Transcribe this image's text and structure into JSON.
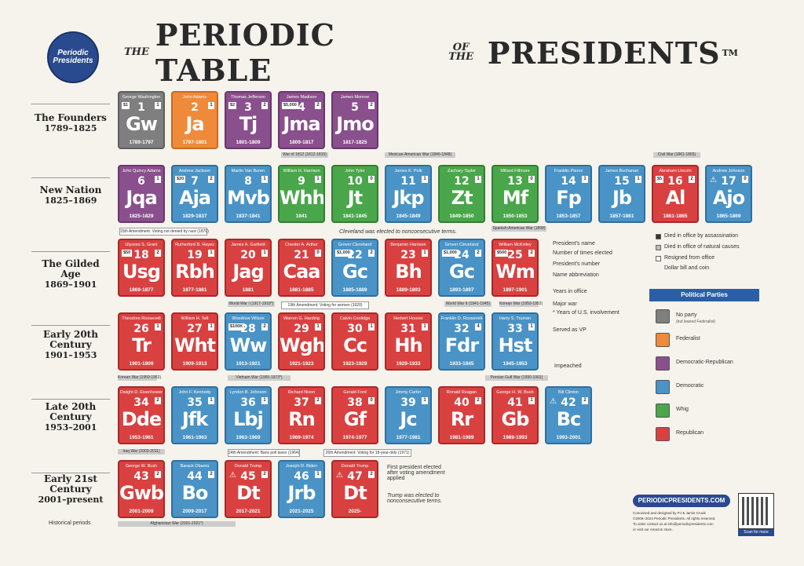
{
  "logo": {
    "text": "Periodic Presidents"
  },
  "title": {
    "the1": "THE",
    "part1": "PERIODIC TABLE",
    "of_the": "OF THE",
    "part2": "PRESIDENTS",
    "tm": "TM"
  },
  "eras": [
    {
      "name": "The Founders",
      "years": "1789–1825"
    },
    {
      "name": "New Nation",
      "years": "1825–1869"
    },
    {
      "name": "The Gilded Age",
      "years": "1869–1901"
    },
    {
      "name": "Early 20th Century",
      "years": "1901–1953"
    },
    {
      "name": "Late 20th Century",
      "years": "1953–2001"
    },
    {
      "name": "Early 21st Century",
      "years": "2001–present"
    }
  ],
  "historical_periods_label": "Historical periods",
  "presidents": [
    {
      "name": "George Washington",
      "num": "1",
      "abbr": "Gw",
      "years": "1789-1797",
      "party": "none",
      "bill": "$1",
      "count": "1"
    },
    {
      "name": "John Adams",
      "num": "2",
      "abbr": "Ja",
      "years": "1797-1801",
      "party": "fed",
      "count": "1"
    },
    {
      "name": "Thomas Jefferson",
      "num": "3",
      "abbr": "Tj",
      "years": "1801-1809",
      "party": "dr",
      "bill": "$2",
      "count": "2"
    },
    {
      "name": "James Madison",
      "num": "4",
      "abbr": "Jma",
      "years": "1809-1817",
      "party": "dr",
      "bill": "$5,000",
      "count": "2"
    },
    {
      "name": "James Monroe",
      "num": "5",
      "abbr": "Jmo",
      "years": "1817-1825",
      "party": "dr",
      "count": "2"
    },
    {
      "name": "John Quincy Adams",
      "num": "6",
      "abbr": "Jqa",
      "years": "1825-1829",
      "party": "dr",
      "count": "1"
    },
    {
      "name": "Andrew Jackson",
      "num": "7",
      "abbr": "Aja",
      "years": "1829-1837",
      "party": "dem",
      "bill": "$20",
      "count": "2"
    },
    {
      "name": "Martin Van Buren",
      "num": "8",
      "abbr": "Mvb",
      "years": "1837-1841",
      "party": "dem",
      "count": "1"
    },
    {
      "name": "William H. Harrison",
      "num": "9",
      "abbr": "Whh",
      "years": "1841",
      "party": "whig",
      "count": "1"
    },
    {
      "name": "John Tyler",
      "num": "10",
      "abbr": "Jt",
      "years": "1841-1845",
      "party": "whig",
      "count": "0"
    },
    {
      "name": "James K. Polk",
      "num": "11",
      "abbr": "Jkp",
      "years": "1845-1849",
      "party": "dem",
      "count": "1"
    },
    {
      "name": "Zachary Taylor",
      "num": "12",
      "abbr": "Zt",
      "years": "1849-1850",
      "party": "whig",
      "count": "1"
    },
    {
      "name": "Millard Fillmore",
      "num": "13",
      "abbr": "Mf",
      "years": "1850-1853",
      "party": "whig",
      "count": "0"
    },
    {
      "name": "Franklin Pierce",
      "num": "14",
      "abbr": "Fp",
      "years": "1853-1857",
      "party": "dem",
      "count": "1"
    },
    {
      "name": "James Buchanan",
      "num": "15",
      "abbr": "Jb",
      "years": "1857-1861",
      "party": "dem",
      "count": "1"
    },
    {
      "name": "Abraham Lincoln",
      "num": "16",
      "abbr": "Al",
      "years": "1861-1865",
      "party": "rep",
      "bill": "$5",
      "count": "2"
    },
    {
      "name": "Andrew Johnson",
      "num": "17",
      "abbr": "Ajo",
      "years": "1865-1869",
      "party": "dem",
      "count": "0",
      "warn": "⚠"
    },
    {
      "name": "Ulysses S. Grant",
      "num": "18",
      "abbr": "Usg",
      "years": "1869-1877",
      "party": "rep",
      "bill": "$50",
      "count": "2"
    },
    {
      "name": "Rutherford B. Hayes",
      "num": "19",
      "abbr": "Rbh",
      "years": "1877-1881",
      "party": "rep",
      "count": "1"
    },
    {
      "name": "James A. Garfield",
      "num": "20",
      "abbr": "Jag",
      "years": "1881",
      "party": "rep",
      "count": "1"
    },
    {
      "name": "Chester A. Arthur",
      "num": "21",
      "abbr": "Caa",
      "years": "1881-1885",
      "party": "rep",
      "count": "0"
    },
    {
      "name": "Grover Cleveland",
      "num": "22",
      "abbr": "Gc",
      "years": "1885-1889",
      "party": "dem",
      "bill": "$1,000",
      "count": "2"
    },
    {
      "name": "Benjamin Harrison",
      "num": "23",
      "abbr": "Bh",
      "years": "1889-1893",
      "party": "rep",
      "count": "1"
    },
    {
      "name": "Grover Cleveland",
      "num": "24",
      "abbr": "Gc",
      "years": "1893-1897",
      "party": "dem",
      "bill": "$1,000",
      "count": "2"
    },
    {
      "name": "William McKinley",
      "num": "25",
      "abbr": "Wm",
      "years": "1897-1901",
      "party": "rep",
      "bill": "$500",
      "count": "2"
    },
    {
      "name": "Theodore Roosevelt",
      "num": "26",
      "abbr": "Tr",
      "years": "1901-1909",
      "party": "rep",
      "count": "1"
    },
    {
      "name": "William H. Taft",
      "num": "27",
      "abbr": "Wht",
      "years": "1909-1913",
      "party": "rep",
      "count": "1"
    },
    {
      "name": "Woodrow Wilson",
      "num": "28",
      "abbr": "Ww",
      "years": "1913-1921",
      "party": "dem",
      "bill": "$100K",
      "count": "2"
    },
    {
      "name": "Warren G. Harding",
      "num": "29",
      "abbr": "Wgh",
      "years": "1921-1923",
      "party": "rep",
      "count": "1"
    },
    {
      "name": "Calvin Coolidge",
      "num": "30",
      "abbr": "Cc",
      "years": "1923-1929",
      "party": "rep",
      "count": "1"
    },
    {
      "name": "Herbert Hoover",
      "num": "31",
      "abbr": "Hh",
      "years": "1929-1933",
      "party": "rep",
      "count": "1"
    },
    {
      "name": "Franklin D. Roosevelt",
      "num": "32",
      "abbr": "Fdr",
      "years": "1933-1945",
      "party": "dem",
      "count": "4"
    },
    {
      "name": "Harry S. Truman",
      "num": "33",
      "abbr": "Hst",
      "years": "1945-1953",
      "party": "dem",
      "count": "1"
    },
    {
      "name": "Dwight D. Eisenhower",
      "num": "34",
      "abbr": "Dde",
      "years": "1953-1961",
      "party": "rep",
      "count": "2"
    },
    {
      "name": "John F. Kennedy",
      "num": "35",
      "abbr": "Jfk",
      "years": "1961-1963",
      "party": "dem",
      "count": "1"
    },
    {
      "name": "Lyndon B. Johnson",
      "num": "36",
      "abbr": "Lbj",
      "years": "1963-1969",
      "party": "dem",
      "count": "1"
    },
    {
      "name": "Richard Nixon",
      "num": "37",
      "abbr": "Rn",
      "years": "1969-1974",
      "party": "rep",
      "count": "2"
    },
    {
      "name": "Gerald Ford",
      "num": "38",
      "abbr": "Gf",
      "years": "1974-1977",
      "party": "rep",
      "count": "0"
    },
    {
      "name": "Jimmy Carter",
      "num": "39",
      "abbr": "Jc",
      "years": "1977-1981",
      "party": "dem",
      "count": "1"
    },
    {
      "name": "Ronald Reagan",
      "num": "40",
      "abbr": "Rr",
      "years": "1981-1989",
      "party": "rep",
      "count": "2"
    },
    {
      "name": "George H. W. Bush",
      "num": "41",
      "abbr": "Gb",
      "years": "1989-1993",
      "party": "rep",
      "count": "1"
    },
    {
      "name": "Bill Clinton",
      "num": "42",
      "abbr": "Bc",
      "years": "1993-2001",
      "party": "dem",
      "count": "2",
      "warn": "⚠"
    },
    {
      "name": "George W. Bush",
      "num": "43",
      "abbr": "Gwb",
      "years": "2001-2009",
      "party": "rep",
      "count": "2"
    },
    {
      "name": "Barack Obama",
      "num": "44",
      "abbr": "Bo",
      "years": "2009-2017",
      "party": "dem",
      "count": "2"
    },
    {
      "name": "Donald Trump",
      "num": "45",
      "abbr": "Dt",
      "years": "2017-2021",
      "party": "rep",
      "count": "2",
      "warn": "⚠"
    },
    {
      "name": "Joseph R. Biden",
      "num": "46",
      "abbr": "Jrb",
      "years": "2021-2025",
      "party": "dem",
      "count": "1"
    },
    {
      "name": "Donald Trump",
      "num": "47",
      "abbr": "Dt",
      "years": "2025-",
      "party": "rep",
      "count": "2",
      "warn": "⚠"
    }
  ],
  "wars": [
    "War of 1812 (1812-1815)",
    "Mexican-American War (1846-1848)",
    "Civil War (1861-1865)",
    "Spanish-American War (1898)",
    "World War I (1917-1918*)",
    "World War II (1941-1945)",
    "Korean War (1950-1953)",
    "Korean War (1950-1953)",
    "Vietnam War (1965-1973*)",
    "Persian Gulf War (1990-1991)",
    "Iraq War (2003-2011)",
    "Afghanistan War (2001-2021*)"
  ],
  "amendments": [
    "15th Amendment: Voting not denied by race (1870)",
    "19th Amendment: Voting for women (1920)",
    "24th Amendment: Bans poll taxes (1964)",
    "26th Amendment: Voting for 18-year-olds (1971)"
  ],
  "notes": {
    "cleveland": "Cleveland was elected to nonconsecutive terms.",
    "trump": "Trump was elected to nonconsecutive terms.",
    "first_president": "First president elected after voting amendment applied",
    "impeached": "Impeached"
  },
  "key": {
    "presidents_name": "President's name",
    "times_elected": "Number of times elected",
    "presidents_number": "President's number",
    "name_abbr": "Name abbreviation",
    "years_in_office": "Years in office",
    "major_war": "Major war",
    "years_involvement": "* Years of U.S. involvement",
    "served_vp": "Served as VP",
    "died_assassination": "Died in office by assassination",
    "died_natural": "Died in office of natural causes",
    "resigned": "Resigned from office",
    "bill_coin": "Dollar bill and coin"
  },
  "parties": {
    "header": "Political Parties",
    "items": [
      {
        "name": "No party",
        "sub": "(but leaned Federalist)",
        "color": "#7f7f7f"
      },
      {
        "name": "Federalist",
        "sub": "",
        "color": "#ef8a3a"
      },
      {
        "name": "Democratic-Republican",
        "sub": "",
        "color": "#8a4f8d"
      },
      {
        "name": "Democratic",
        "sub": "",
        "color": "#4a93c6"
      },
      {
        "name": "Whig",
        "sub": "",
        "color": "#4aa64a"
      },
      {
        "name": "Republican",
        "sub": "",
        "color": "#d94141"
      }
    ]
  },
  "footer": {
    "site": "PERIODICPRESIDENTS.COM",
    "credit1": "Conceived and designed by PJ & Jamie Crook",
    "credit2": "©2006–2024 Periodic Presidents. All rights reserved.",
    "credit3": "To order contact us at info@periodicpresidents.com",
    "credit4": "or visit our Amazon store.",
    "scan": "Scan for more"
  }
}
